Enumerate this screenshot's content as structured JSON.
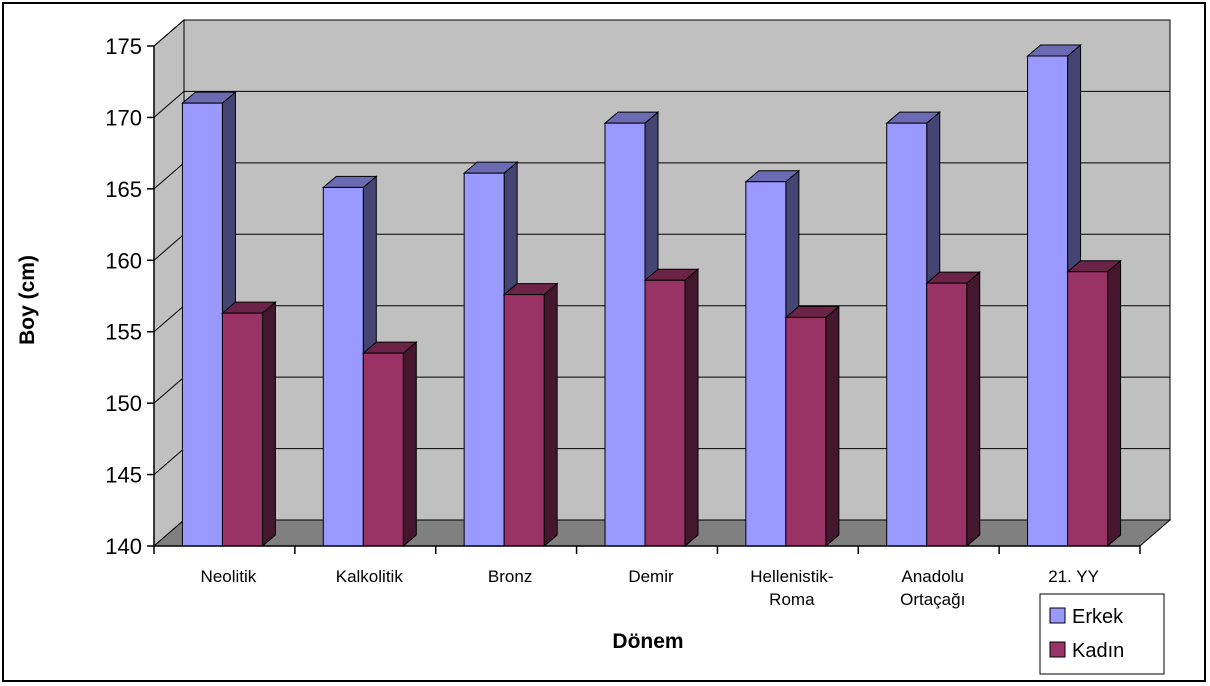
{
  "chart_data": {
    "type": "bar",
    "title": "",
    "xlabel": "Dönem",
    "ylabel": "Boy (cm)",
    "ylim": [
      140,
      175
    ],
    "yticks": [
      140,
      145,
      150,
      155,
      160,
      165,
      170,
      175
    ],
    "grid": true,
    "style": "3d-clustered-column",
    "legend_position": "bottom-right",
    "categories": [
      "Neolitik",
      "Kalkolitik",
      "Bronz",
      "Demir",
      "Hellenistik-Roma",
      "Anadolu Ortaçağı",
      "21. YY"
    ],
    "category_label_lines": [
      [
        "Neolitik"
      ],
      [
        "Kalkolitik"
      ],
      [
        "Bronz"
      ],
      [
        "Demir"
      ],
      [
        "Hellenistik-",
        "Roma"
      ],
      [
        "Anadolu",
        "Ortaçağı"
      ],
      [
        "21. YY"
      ]
    ],
    "series": [
      {
        "name": "Erkek",
        "color": "#9999ff",
        "values": [
          171.0,
          165.1,
          166.1,
          169.6,
          165.5,
          169.6,
          174.3
        ]
      },
      {
        "name": "Kadın",
        "color": "#993366",
        "values": [
          156.3,
          153.5,
          157.6,
          158.6,
          156.0,
          158.4,
          159.2
        ]
      }
    ],
    "colors": {
      "wall": "#c0c0c0",
      "floor": "#808080",
      "grid": "#000000"
    }
  }
}
